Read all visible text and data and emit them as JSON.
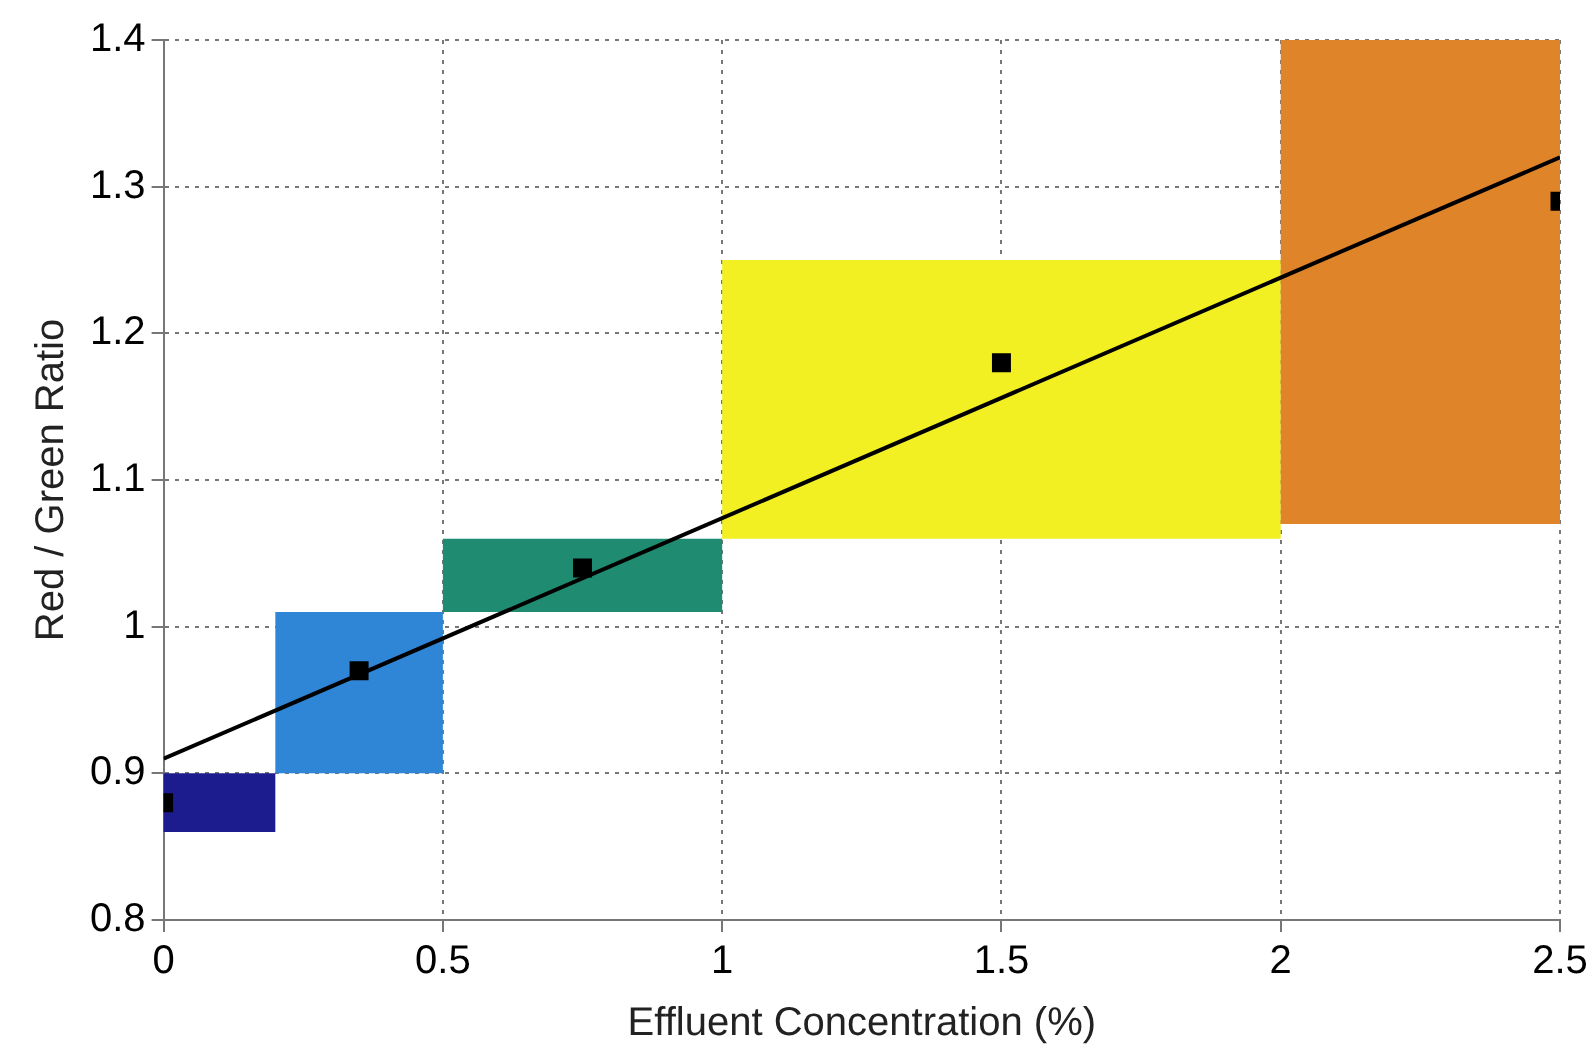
{
  "chart_data": {
    "type": "scatter",
    "xlabel": "Effluent Concentration (%)",
    "ylabel": "Red / Green Ratio",
    "xlim": [
      0,
      2.5
    ],
    "xticks": [
      0,
      0.5,
      1,
      1.5,
      2,
      2.5
    ],
    "ylim": [
      0.8,
      1.4
    ],
    "yticks": [
      0.8,
      0.9,
      1,
      1.1,
      1.2,
      1.3,
      1.4
    ],
    "grid": true,
    "legend": false,
    "series": [
      {
        "type": "histogram",
        "bins": [
          0,
          0.2,
          0.5,
          1,
          2,
          2.5
        ],
        "base": [
          0.86,
          0.9,
          1.01,
          1.06,
          1.07
        ],
        "values": [
          0.04,
          0.11,
          0.05,
          0.19,
          0.33
        ],
        "colors": [
          "#1c1c8e",
          "#2f86d6",
          "#1f8c72",
          "#f2ef22",
          "#e0842a"
        ]
      },
      {
        "x": [
          0,
          0.35,
          0.75,
          1.5,
          2.5
        ],
        "values": [
          0.88,
          0.97,
          1.04,
          1.18,
          1.29
        ],
        "color": "#000000",
        "marker": "square"
      },
      {
        "type": "line",
        "x": [
          0,
          2.5
        ],
        "values": [
          0.91,
          1.32
        ],
        "color": "#000000",
        "line_style": "solid",
        "marker": "none"
      }
    ]
  }
}
